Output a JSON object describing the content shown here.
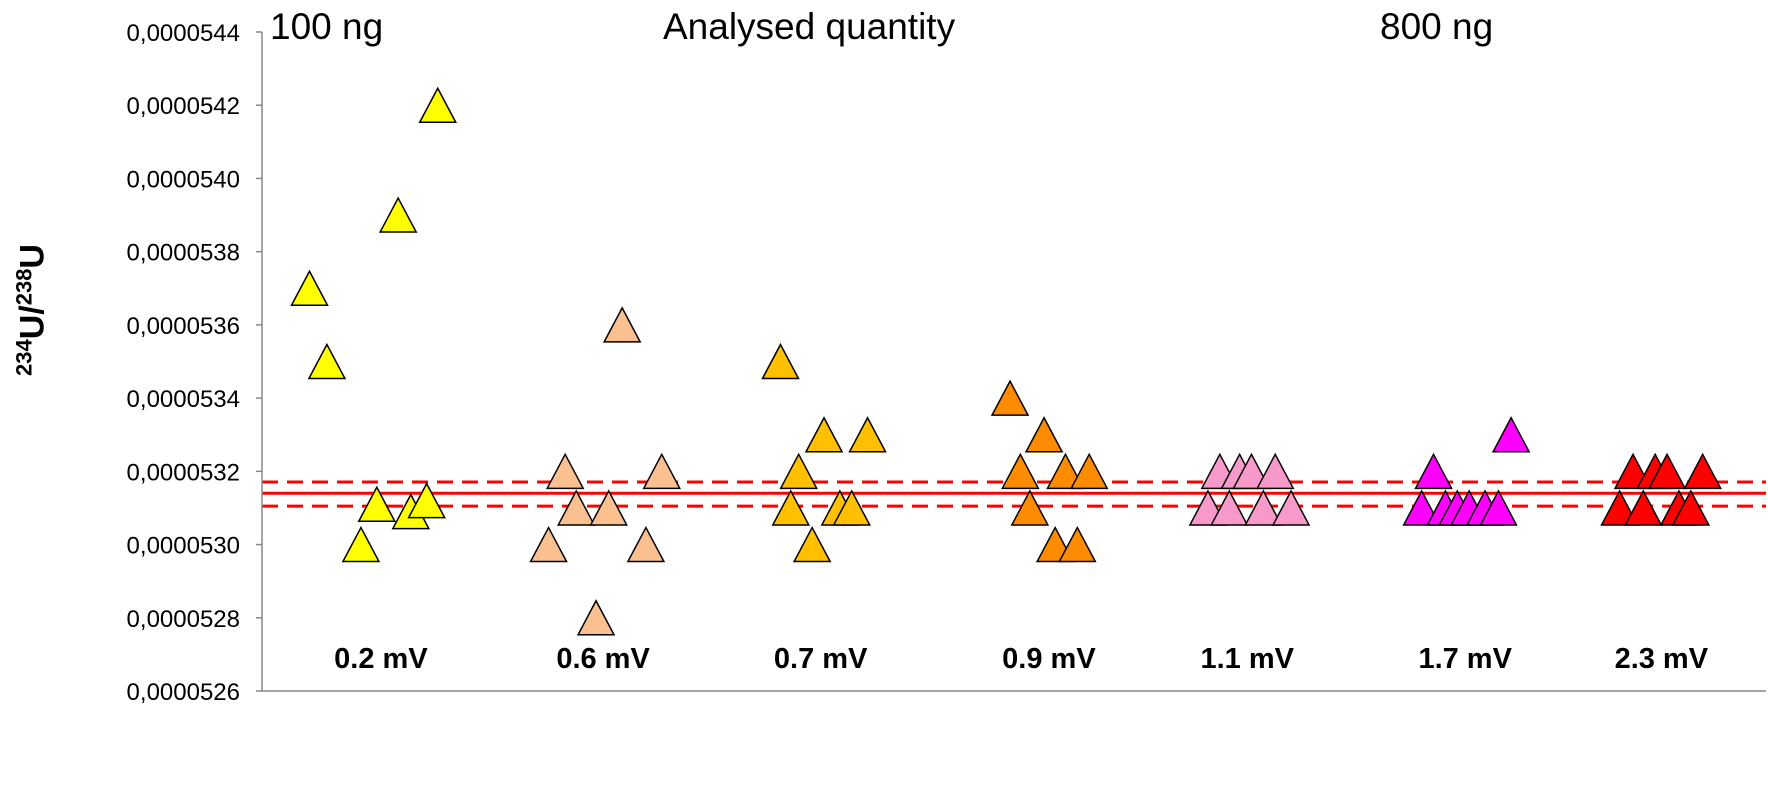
{
  "chart_data": {
    "type": "scatter",
    "ylabel": {
      "iso1": "234",
      "el1": "U/",
      "iso2": "238",
      "el2": "U"
    },
    "ylim": [
      5.26e-05,
      5.44e-05
    ],
    "y_tick_step": 2e-07,
    "y_tick_decimals": 7,
    "decimal_separator": ",",
    "grid": false,
    "annotations": {
      "left": "100 ng",
      "center": "Analysed quantity",
      "right": "800 ng"
    },
    "reference_lines": [
      {
        "y": 5.314e-05,
        "style": "solid",
        "color": "#ff0000"
      },
      {
        "y": 5.3171e-05,
        "style": "dashed",
        "color": "#ff0000"
      },
      {
        "y": 5.3105e-05,
        "style": "dashed",
        "color": "#ff0000"
      }
    ],
    "groups": [
      {
        "label": "0.2 mV",
        "color": "#ffff00",
        "points": [
          {
            "x": 0.6,
            "y": 5.37e-05
          },
          {
            "x": 0.82,
            "y": 5.35e-05
          },
          {
            "x": 1.25,
            "y": 5.3e-05
          },
          {
            "x": 1.45,
            "y": 5.311e-05
          },
          {
            "x": 1.72,
            "y": 5.39e-05
          },
          {
            "x": 1.88,
            "y": 5.309e-05
          },
          {
            "x": 2.08,
            "y": 5.312e-05
          },
          {
            "x": 2.22,
            "y": 5.42e-05
          }
        ]
      },
      {
        "label": "0.6 mV",
        "color": "#fac090",
        "points": [
          {
            "x": 3.62,
            "y": 5.3e-05
          },
          {
            "x": 3.83,
            "y": 5.32e-05
          },
          {
            "x": 3.97,
            "y": 5.31e-05
          },
          {
            "x": 4.22,
            "y": 5.28e-05
          },
          {
            "x": 4.38,
            "y": 5.31e-05
          },
          {
            "x": 4.55,
            "y": 5.36e-05
          },
          {
            "x": 4.85,
            "y": 5.3e-05
          },
          {
            "x": 5.05,
            "y": 5.32e-05
          }
        ]
      },
      {
        "label": "0.7 mV",
        "color": "#ffc000",
        "points": [
          {
            "x": 6.55,
            "y": 5.35e-05
          },
          {
            "x": 6.68,
            "y": 5.31e-05
          },
          {
            "x": 6.78,
            "y": 5.32e-05
          },
          {
            "x": 6.95,
            "y": 5.3e-05
          },
          {
            "x": 7.1,
            "y": 5.33e-05
          },
          {
            "x": 7.3,
            "y": 5.31e-05
          },
          {
            "x": 7.45,
            "y": 5.31e-05
          },
          {
            "x": 7.65,
            "y": 5.33e-05
          }
        ]
      },
      {
        "label": "0.9 mV",
        "color": "#ff8c00",
        "points": [
          {
            "x": 9.45,
            "y": 5.34e-05
          },
          {
            "x": 9.58,
            "y": 5.32e-05
          },
          {
            "x": 9.7,
            "y": 5.31e-05
          },
          {
            "x": 9.88,
            "y": 5.33e-05
          },
          {
            "x": 10.02,
            "y": 5.3e-05
          },
          {
            "x": 10.15,
            "y": 5.32e-05
          },
          {
            "x": 10.3,
            "y": 5.3e-05
          },
          {
            "x": 10.45,
            "y": 5.32e-05
          }
        ]
      },
      {
        "label": "1.1 mV",
        "color": "#f79ac9",
        "points": [
          {
            "x": 11.95,
            "y": 5.31e-05
          },
          {
            "x": 12.1,
            "y": 5.32e-05
          },
          {
            "x": 12.22,
            "y": 5.31e-05
          },
          {
            "x": 12.35,
            "y": 5.32e-05
          },
          {
            "x": 12.5,
            "y": 5.32e-05
          },
          {
            "x": 12.65,
            "y": 5.31e-05
          },
          {
            "x": 12.8,
            "y": 5.32e-05
          },
          {
            "x": 13.0,
            "y": 5.31e-05
          }
        ]
      },
      {
        "label": "1.7 mV",
        "color": "#ff00ff",
        "points": [
          {
            "x": 14.65,
            "y": 5.31e-05
          },
          {
            "x": 14.8,
            "y": 5.32e-05
          },
          {
            "x": 14.95,
            "y": 5.31e-05
          },
          {
            "x": 15.1,
            "y": 5.31e-05
          },
          {
            "x": 15.25,
            "y": 5.31e-05
          },
          {
            "x": 15.45,
            "y": 5.31e-05
          },
          {
            "x": 15.62,
            "y": 5.31e-05
          },
          {
            "x": 15.78,
            "y": 5.33e-05
          }
        ]
      },
      {
        "label": "2.3 mV",
        "color": "#ff0000",
        "points": [
          {
            "x": 17.15,
            "y": 5.31e-05
          },
          {
            "x": 17.32,
            "y": 5.32e-05
          },
          {
            "x": 17.45,
            "y": 5.31e-05
          },
          {
            "x": 17.6,
            "y": 5.32e-05
          },
          {
            "x": 17.75,
            "y": 5.32e-05
          },
          {
            "x": 17.9,
            "y": 5.31e-05
          },
          {
            "x": 18.05,
            "y": 5.31e-05
          },
          {
            "x": 18.2,
            "y": 5.32e-05
          }
        ]
      }
    ]
  }
}
